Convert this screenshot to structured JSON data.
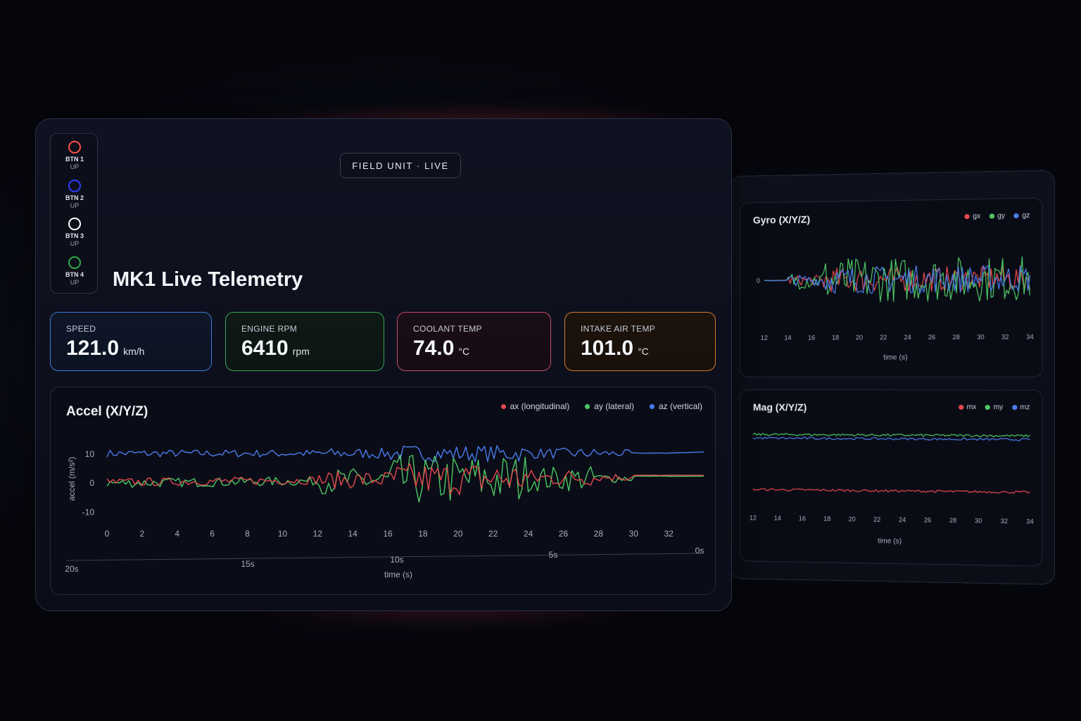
{
  "header": {
    "pill": "FIELD UNIT · LIVE",
    "title": "MK1 Live Telemetry"
  },
  "buttons": [
    {
      "label": "BTN 1",
      "state": "UP",
      "color": "#ff4b4b"
    },
    {
      "label": "BTN 2",
      "state": "UP",
      "color": "#2c3cff"
    },
    {
      "label": "BTN 3",
      "state": "UP",
      "color": "#ffffff"
    },
    {
      "label": "BTN 4",
      "state": "UP",
      "color": "#2fa84a"
    }
  ],
  "stats": {
    "speed": {
      "label": "SPEED",
      "value": "121.0",
      "unit": "km/h"
    },
    "rpm": {
      "label": "ENGINE RPM",
      "value": "6410",
      "unit": "rpm"
    },
    "coolant": {
      "label": "COOLANT TEMP",
      "value": "74.0",
      "unit": "°C"
    },
    "intake": {
      "label": "INTAKE AIR TEMP",
      "value": "101.0",
      "unit": "°C"
    }
  },
  "colors": {
    "red": "#e5484d",
    "green": "#4cc764",
    "blue": "#4b7bec"
  },
  "chart_data": [
    {
      "type": "line",
      "title": "Accel (X/Y/Z)",
      "ylabel": "accel (m/s²)",
      "xlabel": "time (s)",
      "yticks": [
        "10",
        "0",
        "-10"
      ],
      "ytick_values": [
        10,
        0,
        -10
      ],
      "ylim": [
        -13,
        16
      ],
      "xticks": [
        "0",
        "2",
        "4",
        "6",
        "8",
        "10",
        "12",
        "14",
        "16",
        "18",
        "20",
        "22",
        "24",
        "26",
        "28",
        "30",
        "32"
      ],
      "xlim": [
        0,
        34
      ],
      "time_axis_labels": [
        "20s",
        "15s",
        "10s",
        "5s",
        "0s"
      ],
      "legend_position": "top-right",
      "series": [
        {
          "name": "ax (longitudinal)",
          "color": "#e5484d",
          "base": 0.3,
          "amp": 1.2,
          "burst": 4.5
        },
        {
          "name": "ay (lateral)",
          "color": "#4cc764",
          "base": 0.0,
          "amp": 1.4,
          "burst": 7.5
        },
        {
          "name": "az (vertical)",
          "color": "#4b7bec",
          "base": 10.2,
          "amp": 1.1,
          "burst": 1.8
        }
      ]
    },
    {
      "type": "line",
      "title": "Gyro (X/Y/Z)",
      "xlabel": "time (s)",
      "yticks": [
        "0"
      ],
      "ytick_values": [
        0
      ],
      "ylim": [
        -10,
        10
      ],
      "xticks": [
        "12",
        "14",
        "16",
        "18",
        "20",
        "22",
        "24",
        "26",
        "28",
        "30",
        "32",
        "34"
      ],
      "xlim": [
        12,
        34
      ],
      "legend_position": "top-right",
      "series": [
        {
          "name": "gx",
          "color": "#e5484d",
          "base": 0,
          "amp": 2.5
        },
        {
          "name": "gy",
          "color": "#4cc764",
          "base": 0,
          "amp": 4.5
        },
        {
          "name": "gz",
          "color": "#4b7bec",
          "base": 0,
          "amp": 2.8
        }
      ]
    },
    {
      "type": "line",
      "title": "Mag (X/Y/Z)",
      "xlabel": "time (s)",
      "xticks": [
        "12",
        "14",
        "16",
        "18",
        "20",
        "22",
        "24",
        "26",
        "28",
        "30",
        "32",
        "34"
      ],
      "xlim": [
        12,
        34
      ],
      "ylim": [
        -10,
        10
      ],
      "legend_position": "top-right",
      "series": [
        {
          "name": "mx",
          "color": "#e5484d",
          "base": -5.5,
          "amp": 0.25
        },
        {
          "name": "my",
          "color": "#4cc764",
          "base": 6.5,
          "amp": 0.25
        },
        {
          "name": "mz",
          "color": "#4b7bec",
          "base": 5.7,
          "amp": 0.25
        }
      ]
    }
  ]
}
